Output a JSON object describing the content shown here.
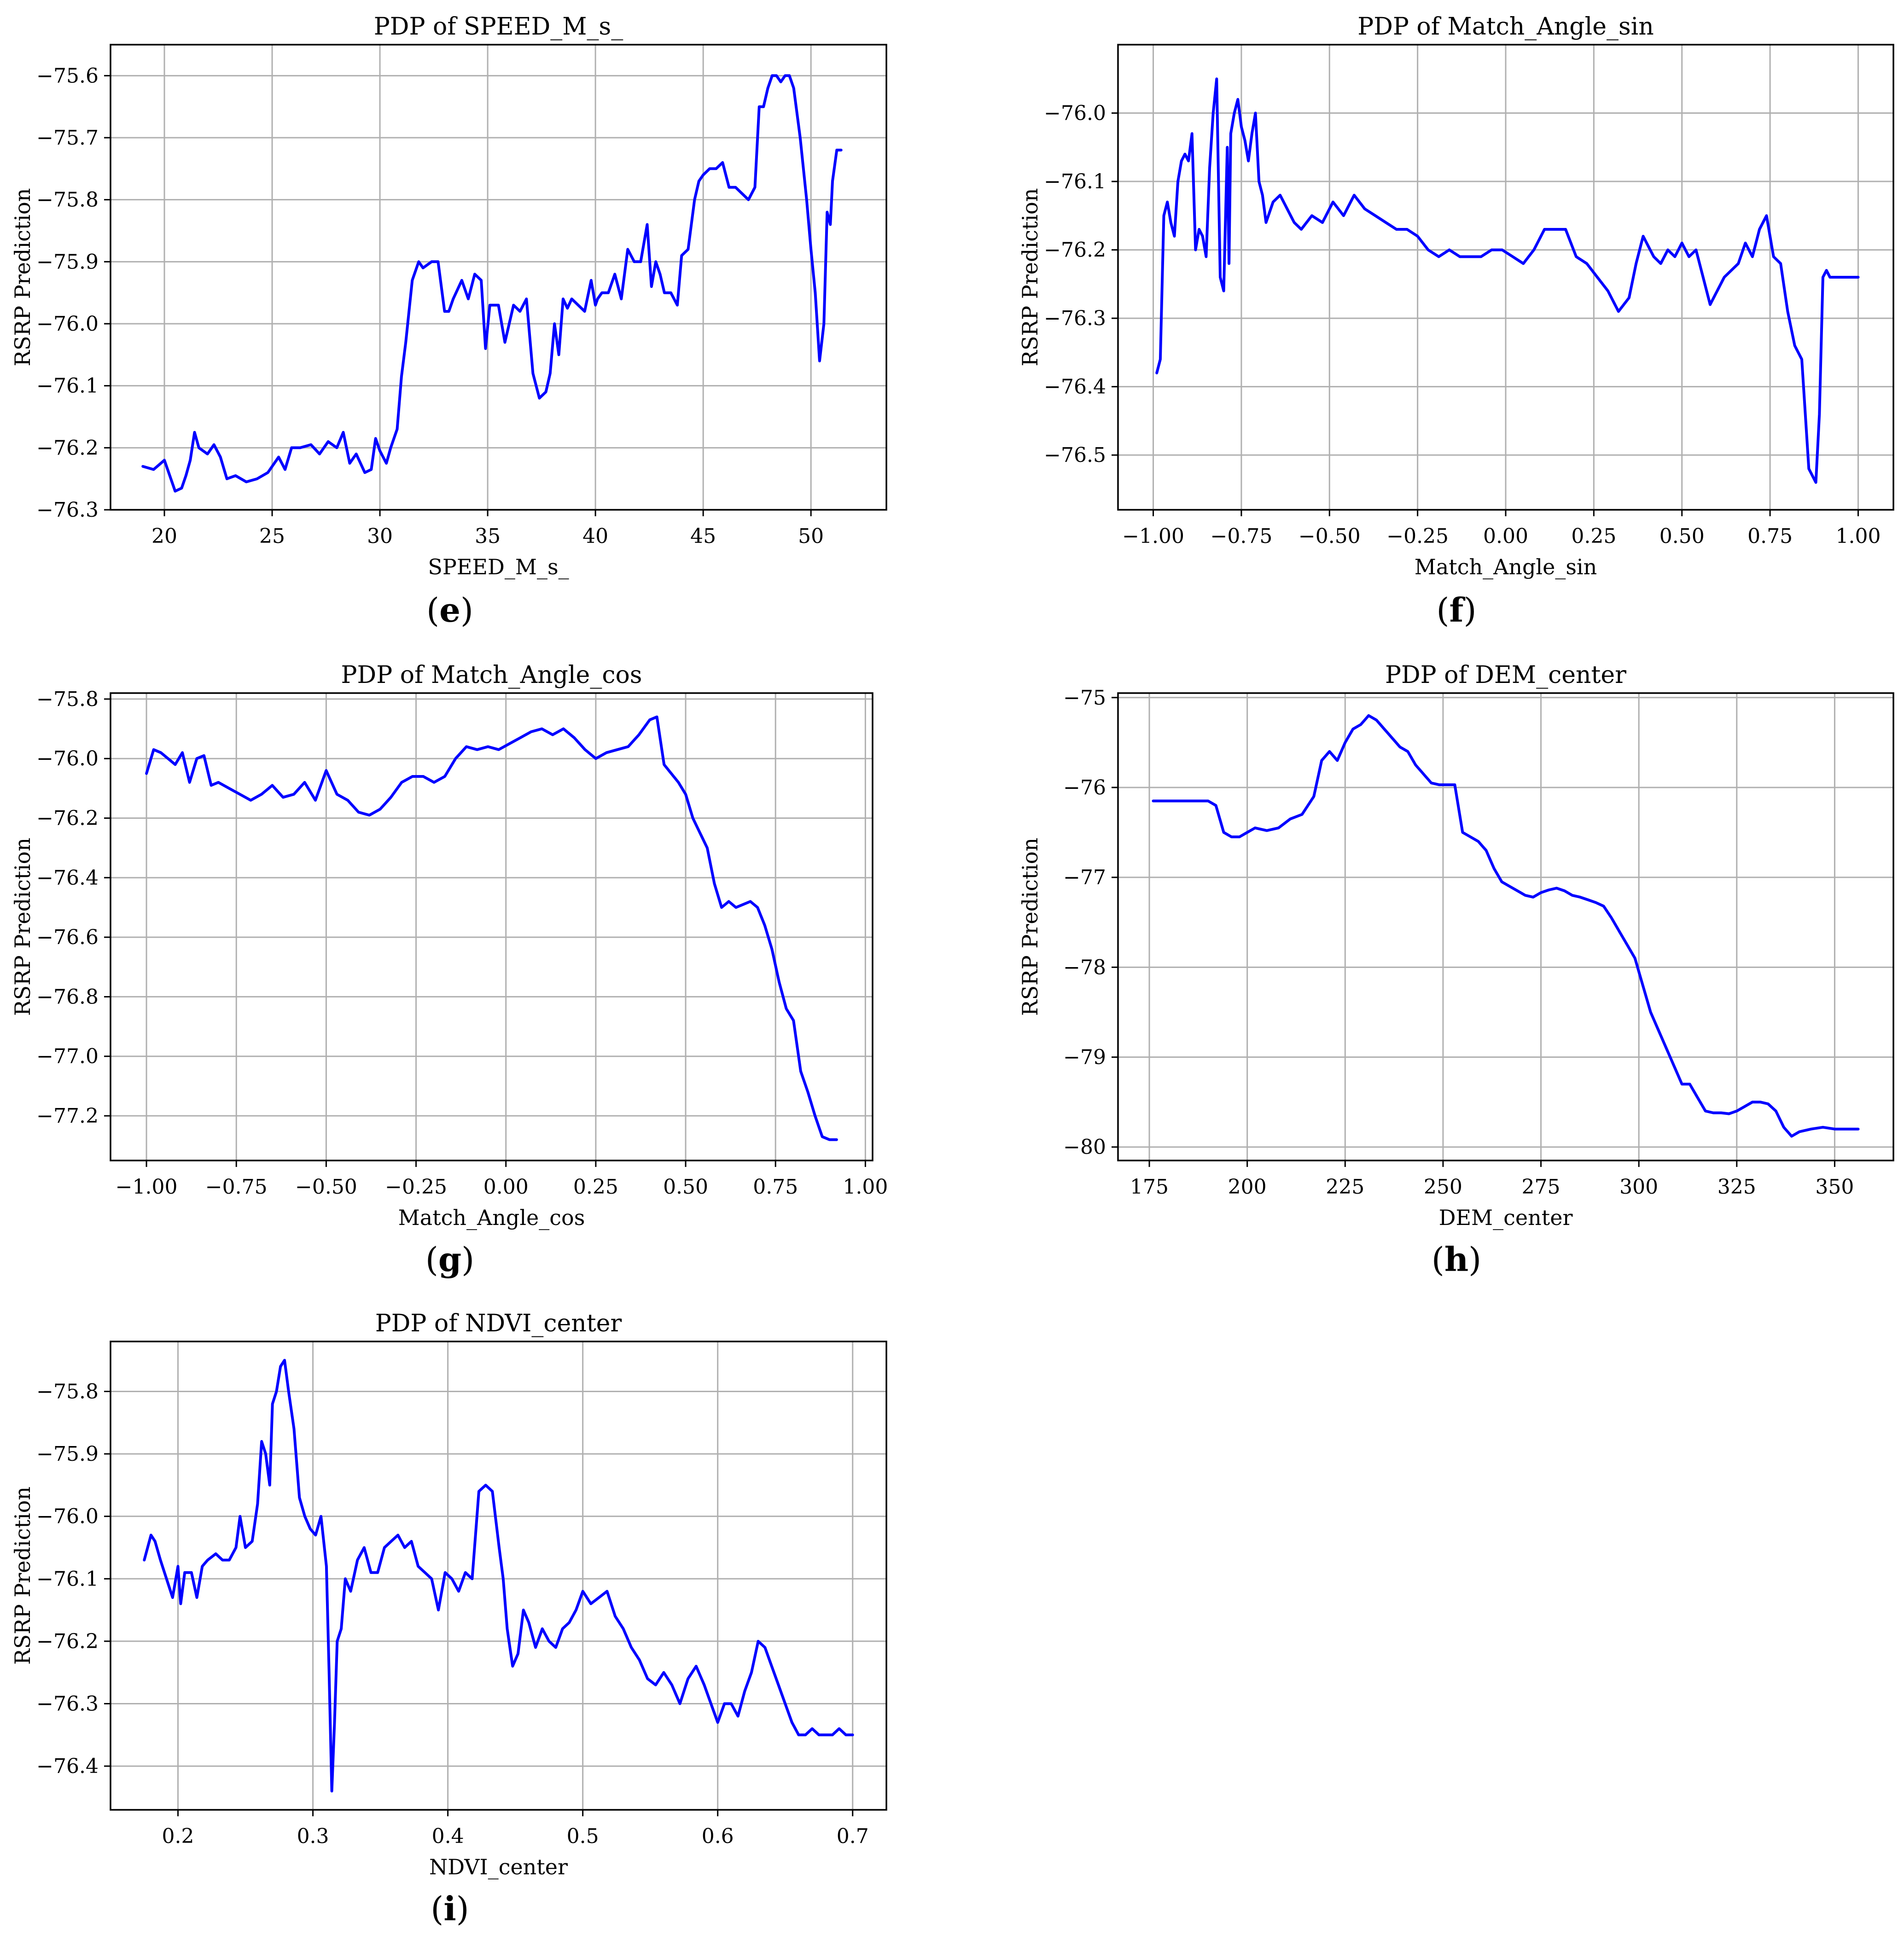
{
  "chart_data": [
    {
      "id": "e",
      "type": "line",
      "caption": "e",
      "title": "PDP of SPEED_M_s_",
      "xlabel": "SPEED_M_s_",
      "ylabel": "RSRP Prediction",
      "xlim": [
        17.5,
        53.5
      ],
      "ylim": [
        -76.3,
        -75.55
      ],
      "xticks": [
        20,
        25,
        30,
        35,
        40,
        45,
        50
      ],
      "xtick_labels": [
        "20",
        "25",
        "30",
        "35",
        "40",
        "45",
        "50"
      ],
      "yticks": [
        -76.3,
        -76.2,
        -76.1,
        -76.0,
        -75.9,
        -75.8,
        -75.7,
        -75.6
      ],
      "ytick_labels": [
        "−76.3",
        "−76.2",
        "−76.1",
        "−76.0",
        "−75.9",
        "−75.8",
        "−75.7",
        "−75.6"
      ],
      "grid": true,
      "line_color": "#0000ff",
      "x": [
        19.0,
        19.5,
        20.0,
        20.2,
        20.5,
        20.8,
        21.0,
        21.2,
        21.4,
        21.6,
        22.0,
        22.3,
        22.6,
        22.9,
        23.3,
        23.8,
        24.3,
        24.8,
        25.3,
        25.6,
        25.9,
        26.3,
        26.8,
        27.2,
        27.6,
        28.0,
        28.3,
        28.6,
        28.9,
        29.3,
        29.6,
        29.8,
        30.0,
        30.3,
        30.5,
        30.8,
        31.0,
        31.2,
        31.5,
        31.8,
        32.0,
        32.4,
        32.7,
        33.0,
        33.2,
        33.4,
        33.8,
        34.1,
        34.4,
        34.7,
        34.9,
        35.1,
        35.3,
        35.5,
        35.8,
        36.0,
        36.2,
        36.5,
        36.8,
        37.1,
        37.4,
        37.7,
        37.9,
        38.1,
        38.3,
        38.5,
        38.7,
        38.9,
        39.2,
        39.5,
        39.8,
        40.0,
        40.1,
        40.3,
        40.6,
        40.9,
        41.2,
        41.5,
        41.8,
        42.1,
        42.4,
        42.6,
        42.8,
        43.0,
        43.2,
        43.5,
        43.8,
        44.0,
        44.3,
        44.6,
        44.8,
        45.0,
        45.3,
        45.6,
        45.9,
        46.2,
        46.5,
        46.8,
        47.1,
        47.4,
        47.6,
        47.8,
        48.0,
        48.2,
        48.4,
        48.6,
        48.8,
        49.0,
        49.2,
        49.5,
        49.8,
        50.0,
        50.2,
        50.4,
        50.6,
        50.75,
        50.9,
        51.0,
        51.2,
        51.4
      ],
      "y": [
        -76.23,
        -76.235,
        -76.22,
        -76.24,
        -76.27,
        -76.265,
        -76.245,
        -76.22,
        -76.175,
        -76.2,
        -76.21,
        -76.195,
        -76.215,
        -76.25,
        -76.245,
        -76.255,
        -76.25,
        -76.24,
        -76.215,
        -76.235,
        -76.2,
        -76.2,
        -76.195,
        -76.21,
        -76.19,
        -76.2,
        -76.175,
        -76.225,
        -76.21,
        -76.24,
        -76.235,
        -76.185,
        -76.205,
        -76.225,
        -76.2,
        -76.17,
        -76.085,
        -76.03,
        -75.93,
        -75.9,
        -75.91,
        -75.9,
        -75.9,
        -75.98,
        -75.98,
        -75.96,
        -75.93,
        -75.96,
        -75.92,
        -75.93,
        -76.04,
        -75.97,
        -75.97,
        -75.97,
        -76.03,
        -76.0,
        -75.97,
        -75.98,
        -75.96,
        -76.08,
        -76.12,
        -76.11,
        -76.08,
        -76.0,
        -76.05,
        -75.96,
        -75.975,
        -75.96,
        -75.97,
        -75.98,
        -75.93,
        -75.97,
        -75.96,
        -75.95,
        -75.95,
        -75.92,
        -75.96,
        -75.88,
        -75.9,
        -75.9,
        -75.84,
        -75.94,
        -75.9,
        -75.92,
        -75.95,
        -75.95,
        -75.97,
        -75.89,
        -75.88,
        -75.8,
        -75.77,
        -75.76,
        -75.75,
        -75.75,
        -75.74,
        -75.78,
        -75.78,
        -75.79,
        -75.8,
        -75.78,
        -75.65,
        -75.65,
        -75.62,
        -75.6,
        -75.6,
        -75.61,
        -75.6,
        -75.6,
        -75.62,
        -75.7,
        -75.8,
        -75.88,
        -75.95,
        -76.06,
        -76.0,
        -75.82,
        -75.84,
        -75.77,
        -75.72,
        -75.72
      ]
    },
    {
      "id": "f",
      "type": "line",
      "caption": "f",
      "title": "PDP of Match_Angle_sin",
      "xlabel": "Match_Angle_sin",
      "ylabel": "RSRP Prediction",
      "xlim": [
        -1.1,
        1.1
      ],
      "ylim": [
        -76.58,
        -75.9
      ],
      "xticks": [
        -1.0,
        -0.75,
        -0.5,
        -0.25,
        0.0,
        0.25,
        0.5,
        0.75,
        1.0
      ],
      "xtick_labels": [
        "−1.00",
        "−0.75",
        "−0.50",
        "−0.25",
        "0.00",
        "0.25",
        "0.50",
        "0.75",
        "1.00"
      ],
      "yticks": [
        -76.5,
        -76.4,
        -76.3,
        -76.2,
        -76.1,
        -76.0
      ],
      "ytick_labels": [
        "−76.5",
        "−76.4",
        "−76.3",
        "−76.2",
        "−76.1",
        "−76.0"
      ],
      "grid": true,
      "line_color": "#0000ff",
      "x": [
        -0.99,
        -0.98,
        -0.97,
        -0.96,
        -0.95,
        -0.94,
        -0.93,
        -0.92,
        -0.91,
        -0.9,
        -0.89,
        -0.88,
        -0.87,
        -0.86,
        -0.85,
        -0.84,
        -0.83,
        -0.82,
        -0.81,
        -0.8,
        -0.79,
        -0.785,
        -0.78,
        -0.77,
        -0.76,
        -0.75,
        -0.74,
        -0.73,
        -0.72,
        -0.71,
        -0.7,
        -0.69,
        -0.68,
        -0.66,
        -0.64,
        -0.62,
        -0.6,
        -0.58,
        -0.55,
        -0.52,
        -0.49,
        -0.46,
        -0.43,
        -0.4,
        -0.37,
        -0.34,
        -0.31,
        -0.28,
        -0.25,
        -0.22,
        -0.19,
        -0.16,
        -0.13,
        -0.1,
        -0.07,
        -0.04,
        -0.01,
        0.02,
        0.05,
        0.08,
        0.11,
        0.14,
        0.17,
        0.2,
        0.23,
        0.26,
        0.29,
        0.32,
        0.35,
        0.37,
        0.39,
        0.41,
        0.42,
        0.44,
        0.46,
        0.48,
        0.5,
        0.52,
        0.54,
        0.56,
        0.58,
        0.6,
        0.62,
        0.64,
        0.66,
        0.68,
        0.7,
        0.72,
        0.74,
        0.76,
        0.78,
        0.8,
        0.82,
        0.84,
        0.86,
        0.88,
        0.89,
        0.9,
        0.91,
        0.92,
        0.93,
        0.94,
        0.95,
        0.96,
        0.97,
        0.98,
        0.99,
        1.0
      ],
      "y": [
        -76.38,
        -76.36,
        -76.15,
        -76.13,
        -76.16,
        -76.18,
        -76.1,
        -76.07,
        -76.06,
        -76.07,
        -76.03,
        -76.2,
        -76.17,
        -76.18,
        -76.21,
        -76.08,
        -76.0,
        -75.95,
        -76.24,
        -76.26,
        -76.05,
        -76.22,
        -76.03,
        -76.0,
        -75.98,
        -76.02,
        -76.04,
        -76.07,
        -76.03,
        -76.0,
        -76.1,
        -76.12,
        -76.16,
        -76.13,
        -76.12,
        -76.14,
        -76.16,
        -76.17,
        -76.15,
        -76.16,
        -76.13,
        -76.15,
        -76.12,
        -76.14,
        -76.15,
        -76.16,
        -76.17,
        -76.17,
        -76.18,
        -76.2,
        -76.21,
        -76.2,
        -76.21,
        -76.21,
        -76.21,
        -76.2,
        -76.2,
        -76.21,
        -76.22,
        -76.2,
        -76.17,
        -76.17,
        -76.17,
        -76.21,
        -76.22,
        -76.24,
        -76.26,
        -76.29,
        -76.27,
        -76.22,
        -76.18,
        -76.2,
        -76.21,
        -76.22,
        -76.2,
        -76.21,
        -76.19,
        -76.21,
        -76.2,
        -76.24,
        -76.28,
        -76.26,
        -76.24,
        -76.23,
        -76.22,
        -76.19,
        -76.21,
        -76.17,
        -76.15,
        -76.21,
        -76.22,
        -76.29,
        -76.34,
        -76.36,
        -76.52,
        -76.54,
        -76.44,
        -76.24,
        -76.23,
        -76.24,
        -76.24,
        -76.24,
        -76.24,
        -76.24,
        -76.24,
        -76.24,
        -76.24,
        -76.24
      ]
    },
    {
      "id": "g",
      "type": "line",
      "caption": "g",
      "title": "PDP of Match_Angle_cos",
      "xlabel": "Match_Angle_cos",
      "ylabel": "RSRP Prediction",
      "xlim": [
        -1.1,
        1.02
      ],
      "ylim": [
        -77.35,
        -75.78
      ],
      "xticks": [
        -1.0,
        -0.75,
        -0.5,
        -0.25,
        0.0,
        0.25,
        0.5,
        0.75,
        1.0
      ],
      "xtick_labels": [
        "−1.00",
        "−0.75",
        "−0.50",
        "−0.25",
        "0.00",
        "0.25",
        "0.50",
        "0.75",
        "1.00"
      ],
      "yticks": [
        -77.2,
        -77.0,
        -76.8,
        -76.6,
        -76.4,
        -76.2,
        -76.0,
        -75.8
      ],
      "ytick_labels": [
        "−77.2",
        "−77.0",
        "−76.8",
        "−76.6",
        "−76.4",
        "−76.2",
        "−76.0",
        "−75.8"
      ],
      "grid": true,
      "line_color": "#0000ff",
      "x": [
        -1.0,
        -0.98,
        -0.96,
        -0.94,
        -0.92,
        -0.9,
        -0.88,
        -0.86,
        -0.84,
        -0.82,
        -0.8,
        -0.77,
        -0.74,
        -0.71,
        -0.68,
        -0.65,
        -0.62,
        -0.59,
        -0.56,
        -0.53,
        -0.5,
        -0.47,
        -0.44,
        -0.41,
        -0.38,
        -0.35,
        -0.32,
        -0.29,
        -0.26,
        -0.23,
        -0.2,
        -0.17,
        -0.14,
        -0.11,
        -0.08,
        -0.05,
        -0.02,
        0.01,
        0.04,
        0.07,
        0.1,
        0.13,
        0.16,
        0.19,
        0.22,
        0.25,
        0.28,
        0.31,
        0.34,
        0.37,
        0.4,
        0.42,
        0.44,
        0.46,
        0.48,
        0.5,
        0.52,
        0.54,
        0.56,
        0.58,
        0.6,
        0.62,
        0.64,
        0.66,
        0.68,
        0.7,
        0.72,
        0.74,
        0.76,
        0.78,
        0.8,
        0.82,
        0.84,
        0.86,
        0.88,
        0.9,
        0.91,
        0.92
      ],
      "y": [
        -76.05,
        -75.97,
        -75.98,
        -76.0,
        -76.02,
        -75.98,
        -76.08,
        -76.0,
        -75.99,
        -76.09,
        -76.08,
        -76.1,
        -76.12,
        -76.14,
        -76.12,
        -76.09,
        -76.13,
        -76.12,
        -76.08,
        -76.14,
        -76.04,
        -76.12,
        -76.14,
        -76.18,
        -76.19,
        -76.17,
        -76.13,
        -76.08,
        -76.06,
        -76.06,
        -76.08,
        -76.06,
        -76.0,
        -75.96,
        -75.97,
        -75.96,
        -75.97,
        -75.95,
        -75.93,
        -75.91,
        -75.9,
        -75.92,
        -75.9,
        -75.93,
        -75.97,
        -76.0,
        -75.98,
        -75.97,
        -75.96,
        -75.92,
        -75.87,
        -75.86,
        -76.02,
        -76.05,
        -76.08,
        -76.12,
        -76.2,
        -76.25,
        -76.3,
        -76.42,
        -76.5,
        -76.48,
        -76.5,
        -76.49,
        -76.48,
        -76.5,
        -76.56,
        -76.64,
        -76.75,
        -76.84,
        -76.88,
        -77.05,
        -77.12,
        -77.2,
        -77.27,
        -77.28,
        -77.28,
        -77.28
      ],
      "x_valid_max": 0.92
    },
    {
      "id": "h",
      "type": "line",
      "caption": "h",
      "title": "PDP of DEM_center",
      "xlabel": "DEM_center",
      "ylabel": "RSRP Prediction",
      "xlim": [
        167,
        365
      ],
      "ylim": [
        -80.15,
        -74.95
      ],
      "xticks": [
        175,
        200,
        225,
        250,
        275,
        300,
        325,
        350
      ],
      "xtick_labels": [
        "175",
        "200",
        "225",
        "250",
        "275",
        "300",
        "325",
        "350"
      ],
      "yticks": [
        -80,
        -79,
        -78,
        -77,
        -76,
        -75
      ],
      "ytick_labels": [
        "−80",
        "−79",
        "−78",
        "−77",
        "−76",
        "−75"
      ],
      "grid": true,
      "line_color": "#0000ff",
      "x": [
        176,
        185,
        190,
        192,
        194,
        196,
        198,
        200,
        202,
        205,
        208,
        211,
        214,
        217,
        219,
        221,
        223,
        225,
        227,
        229,
        231,
        233,
        235,
        237,
        239,
        241,
        243,
        245,
        247,
        249,
        251,
        253,
        255,
        257,
        259,
        261,
        263,
        265,
        267,
        269,
        271,
        273,
        275,
        277,
        279,
        281,
        283,
        285,
        287,
        289,
        291,
        293,
        295,
        297,
        299,
        301,
        303,
        305,
        307,
        309,
        311,
        313,
        315,
        317,
        319,
        321,
        323,
        325,
        327,
        329,
        331,
        333,
        335,
        337,
        339,
        341,
        344,
        347,
        350,
        353,
        356
      ],
      "y": [
        -76.15,
        -76.15,
        -76.15,
        -76.2,
        -76.5,
        -76.55,
        -76.55,
        -76.5,
        -76.45,
        -76.48,
        -76.45,
        -76.35,
        -76.3,
        -76.1,
        -75.7,
        -75.6,
        -75.7,
        -75.5,
        -75.35,
        -75.3,
        -75.2,
        -75.25,
        -75.35,
        -75.45,
        -75.55,
        -75.6,
        -75.75,
        -75.85,
        -75.95,
        -75.97,
        -75.97,
        -75.97,
        -76.5,
        -76.55,
        -76.6,
        -76.7,
        -76.9,
        -77.05,
        -77.1,
        -77.15,
        -77.2,
        -77.22,
        -77.17,
        -77.14,
        -77.12,
        -77.15,
        -77.2,
        -77.22,
        -77.25,
        -77.28,
        -77.32,
        -77.45,
        -77.6,
        -77.75,
        -77.9,
        -78.2,
        -78.5,
        -78.7,
        -78.9,
        -79.1,
        -79.3,
        -79.3,
        -79.45,
        -79.6,
        -79.62,
        -79.62,
        -79.63,
        -79.6,
        -79.55,
        -79.5,
        -79.5,
        -79.52,
        -79.6,
        -79.78,
        -79.88,
        -79.83,
        -79.8,
        -79.78,
        -79.8,
        -79.8,
        -79.8
      ]
    },
    {
      "id": "i",
      "type": "line",
      "caption": "i",
      "title": "PDP of NDVI_center",
      "xlabel": "NDVI_center",
      "ylabel": "RSRP Prediction",
      "xlim": [
        0.15,
        0.725
      ],
      "ylim": [
        -76.47,
        -75.72
      ],
      "xticks": [
        0.2,
        0.3,
        0.4,
        0.5,
        0.6,
        0.7
      ],
      "xtick_labels": [
        "0.2",
        "0.3",
        "0.4",
        "0.5",
        "0.6",
        "0.7"
      ],
      "yticks": [
        -76.4,
        -76.3,
        -76.2,
        -76.1,
        -76.0,
        -75.9,
        -75.8
      ],
      "ytick_labels": [
        "−76.4",
        "−76.3",
        "−76.2",
        "−76.1",
        "−76.0",
        "−75.9",
        "−75.8"
      ],
      "grid": true,
      "line_color": "#0000ff",
      "x": [
        0.175,
        0.18,
        0.183,
        0.187,
        0.19,
        0.193,
        0.196,
        0.2,
        0.202,
        0.205,
        0.21,
        0.214,
        0.218,
        0.222,
        0.228,
        0.233,
        0.238,
        0.243,
        0.246,
        0.25,
        0.255,
        0.259,
        0.262,
        0.265,
        0.268,
        0.27,
        0.273,
        0.276,
        0.279,
        0.282,
        0.286,
        0.29,
        0.294,
        0.298,
        0.302,
        0.306,
        0.31,
        0.312,
        0.314,
        0.316,
        0.318,
        0.321,
        0.324,
        0.328,
        0.333,
        0.338,
        0.343,
        0.348,
        0.353,
        0.358,
        0.363,
        0.368,
        0.373,
        0.378,
        0.383,
        0.388,
        0.393,
        0.398,
        0.403,
        0.408,
        0.413,
        0.418,
        0.423,
        0.428,
        0.433,
        0.438,
        0.441,
        0.444,
        0.448,
        0.452,
        0.456,
        0.46,
        0.465,
        0.47,
        0.475,
        0.48,
        0.485,
        0.49,
        0.495,
        0.5,
        0.506,
        0.512,
        0.518,
        0.524,
        0.53,
        0.536,
        0.542,
        0.548,
        0.554,
        0.56,
        0.566,
        0.572,
        0.578,
        0.584,
        0.59,
        0.595,
        0.6,
        0.605,
        0.61,
        0.615,
        0.62,
        0.625,
        0.63,
        0.635,
        0.64,
        0.645,
        0.65,
        0.655,
        0.66,
        0.665,
        0.67,
        0.675,
        0.68,
        0.685,
        0.69,
        0.695,
        0.7
      ],
      "y": [
        -76.07,
        -76.03,
        -76.04,
        -76.07,
        -76.09,
        -76.11,
        -76.13,
        -76.08,
        -76.14,
        -76.09,
        -76.09,
        -76.13,
        -76.08,
        -76.07,
        -76.06,
        -76.07,
        -76.07,
        -76.05,
        -76.0,
        -76.05,
        -76.04,
        -75.98,
        -75.88,
        -75.9,
        -75.95,
        -75.82,
        -75.8,
        -75.76,
        -75.75,
        -75.8,
        -75.86,
        -75.97,
        -76.0,
        -76.02,
        -76.03,
        -76.0,
        -76.08,
        -76.25,
        -76.44,
        -76.33,
        -76.2,
        -76.18,
        -76.1,
        -76.12,
        -76.07,
        -76.05,
        -76.09,
        -76.09,
        -76.05,
        -76.04,
        -76.03,
        -76.05,
        -76.04,
        -76.08,
        -76.09,
        -76.1,
        -76.15,
        -76.09,
        -76.1,
        -76.12,
        -76.09,
        -76.1,
        -75.96,
        -75.95,
        -75.96,
        -76.05,
        -76.1,
        -76.18,
        -76.24,
        -76.22,
        -76.15,
        -76.17,
        -76.21,
        -76.18,
        -76.2,
        -76.21,
        -76.18,
        -76.17,
        -76.15,
        -76.12,
        -76.14,
        -76.13,
        -76.12,
        -76.16,
        -76.18,
        -76.21,
        -76.23,
        -76.26,
        -76.27,
        -76.25,
        -76.27,
        -76.3,
        -76.26,
        -76.24,
        -76.27,
        -76.3,
        -76.33,
        -76.3,
        -76.3,
        -76.32,
        -76.28,
        -76.25,
        -76.2,
        -76.21,
        -76.24,
        -76.27,
        -76.3,
        -76.33,
        -76.35,
        -76.35,
        -76.34,
        -76.35,
        -76.35,
        -76.35,
        -76.34,
        -76.35,
        -76.35
      ]
    }
  ]
}
